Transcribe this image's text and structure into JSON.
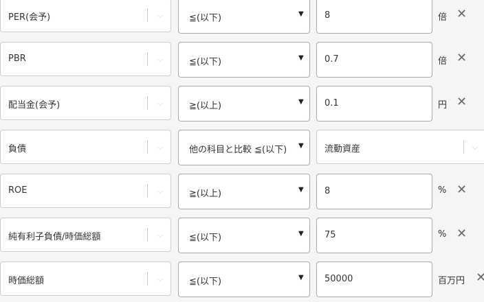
{
  "chevron_glyph": "⌵",
  "arrow_glyph": "▼",
  "remove_glyph": "✕",
  "rows": [
    {
      "field": "PER(会予)",
      "operator": "≦(以下)",
      "value": "8",
      "unit": "倍"
    },
    {
      "field": "PBR",
      "operator": "≦(以下)",
      "value": "0.7",
      "unit": "倍"
    },
    {
      "field": "配当金(会予)",
      "operator": "≧(以上)",
      "value": "0.1",
      "unit": "円"
    },
    {
      "field": "負債",
      "operator": "他の科目と比較 ≦(以下)",
      "compare_field": "流動資産"
    },
    {
      "field": "ROE",
      "operator": "≧(以上)",
      "value": "8",
      "unit": "%"
    },
    {
      "field": "純有利子負債/時価総額",
      "operator": "≦(以下)",
      "value": "75",
      "unit": "%"
    },
    {
      "field": "時価総額",
      "operator": "≦(以下)",
      "value": "50000",
      "unit": "百万円"
    }
  ]
}
